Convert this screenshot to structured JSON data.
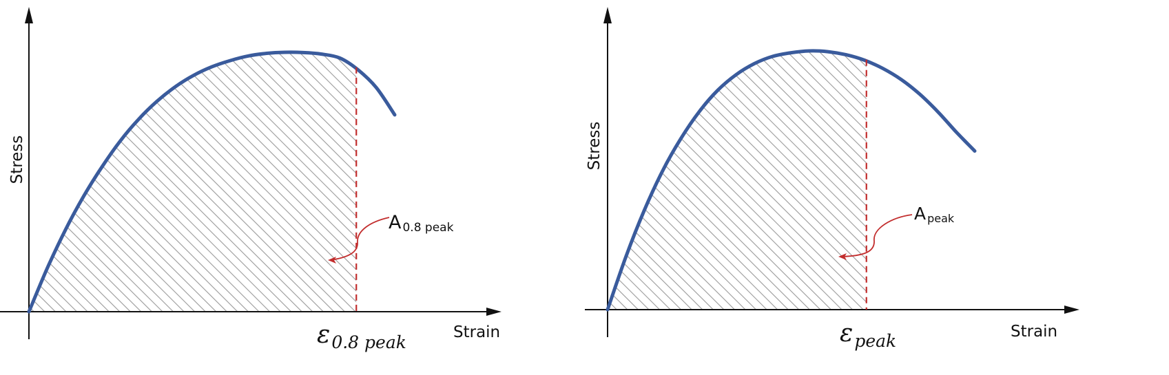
{
  "colors": {
    "curve": "#3a5b9c",
    "marker": "#c22d2d",
    "hatch": "#9a9a9a",
    "axis": "#111111"
  },
  "chart_data": [
    {
      "type": "line",
      "xlabel": "Strain",
      "ylabel": "Stress",
      "grid": false,
      "axis_ticks": false,
      "series": [
        {
          "x": [
            0,
            0.05,
            0.1,
            0.15,
            0.2,
            0.25,
            0.3,
            0.35,
            0.4,
            0.45,
            0.5,
            0.55,
            0.6,
            0.65,
            0.7,
            0.75,
            0.8,
            0.85,
            0.9,
            0.95,
            1.0
          ],
          "y": [
            0,
            0.167,
            0.316,
            0.446,
            0.559,
            0.659,
            0.742,
            0.811,
            0.867,
            0.911,
            0.944,
            0.968,
            0.986,
            0.996,
            1.0,
            0.999,
            0.993,
            0.978,
            0.932,
            0.863,
            0.759
          ]
        }
      ],
      "marker_x": 0.895,
      "marker_label_symbol": "ε",
      "marker_label_sub": "0.8 peak",
      "area_label_main": "A",
      "area_label_sub": "0.8 peak",
      "shaded_region": "area under curve from 0 to marker_x"
    },
    {
      "type": "line",
      "xlabel": "Strain",
      "ylabel": "Stress",
      "grid": false,
      "axis_ticks": false,
      "series": [
        {
          "x": [
            0,
            0.05,
            0.1,
            0.15,
            0.2,
            0.25,
            0.3,
            0.35,
            0.4,
            0.45,
            0.5,
            0.55,
            0.6,
            0.65,
            0.7,
            0.75,
            0.8,
            0.85,
            0.9,
            0.95,
            1.0
          ],
          "y": [
            0,
            0.205,
            0.384,
            0.537,
            0.662,
            0.766,
            0.848,
            0.908,
            0.951,
            0.979,
            0.993,
            1.0,
            0.997,
            0.985,
            0.964,
            0.932,
            0.889,
            0.833,
            0.764,
            0.686,
            0.613
          ]
        }
      ],
      "marker_x": 0.705,
      "marker_label_symbol": "ε",
      "marker_label_sub": "peak",
      "area_label_main": "A",
      "area_label_sub": "peak",
      "shaded_region": "area under curve from 0 to marker_x"
    }
  ]
}
